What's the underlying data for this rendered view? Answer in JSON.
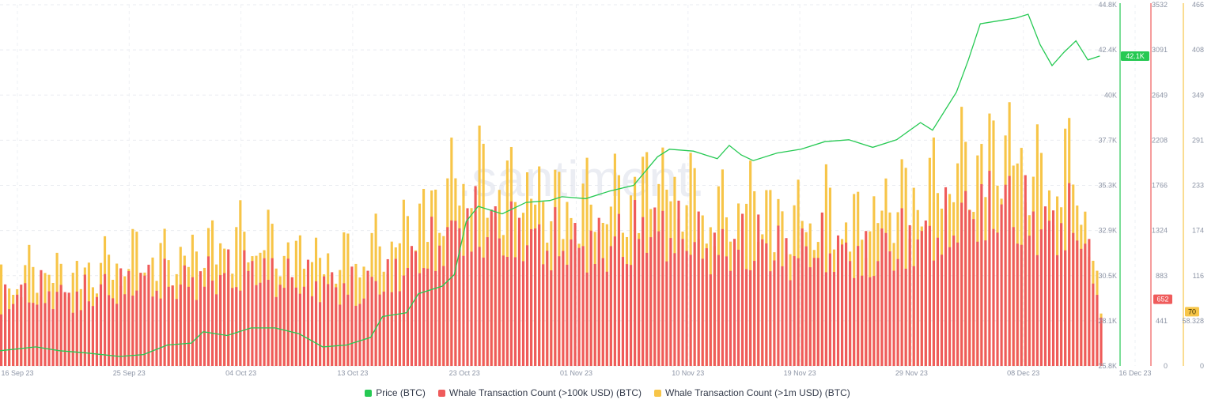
{
  "chart_data": {
    "type": "bar",
    "watermark": ".santiment.",
    "x_ticks": [
      "16 Sep 23",
      "25 Sep 23",
      "04 Oct 23",
      "13 Oct 23",
      "23 Oct 23",
      "01 Nov 23",
      "10 Nov 23",
      "19 Nov 23",
      "29 Nov 23",
      "08 Dec 23",
      "16 Dec 23"
    ],
    "axes": {
      "price": {
        "ticks": [
          "44.8K",
          "42.4K",
          "40K",
          "37.7K",
          "35.3K",
          "32.9K",
          "30.5K",
          "28.1K",
          "25.8K"
        ],
        "ylim": [
          25800,
          44800
        ],
        "current_label": "42.1K",
        "current": 42100,
        "color": "#26c953"
      },
      "whale_100k": {
        "ticks": [
          "3532",
          "3091",
          "2649",
          "2208",
          "1766",
          "1324",
          "883",
          "441",
          "0"
        ],
        "ylim": [
          0,
          3532
        ],
        "current_label": "652",
        "current": 652,
        "color": "#ef5b5b"
      },
      "whale_1m": {
        "ticks": [
          "466",
          "408",
          "349",
          "291",
          "233",
          "174",
          "116",
          "58.328",
          "0"
        ],
        "ylim": [
          0,
          466
        ],
        "current_label": "70",
        "current": 70,
        "color": "#f7c548"
      }
    },
    "series": [
      {
        "name": "Price (BTC)",
        "type": "line",
        "axis": "price",
        "color": "#26c953",
        "x": [
          "2023-09-15",
          "2023-09-18",
          "2023-09-20",
          "2023-09-22",
          "2023-09-25",
          "2023-09-27",
          "2023-09-29",
          "2023-10-01",
          "2023-10-02",
          "2023-10-04",
          "2023-10-06",
          "2023-10-08",
          "2023-10-10",
          "2023-10-12",
          "2023-10-14",
          "2023-10-16",
          "2023-10-17",
          "2023-10-19",
          "2023-10-20",
          "2023-10-22",
          "2023-10-23",
          "2023-10-24",
          "2023-10-25",
          "2023-10-27",
          "2023-10-29",
          "2023-10-31",
          "2023-11-01",
          "2023-11-03",
          "2023-11-05",
          "2023-11-07",
          "2023-11-09",
          "2023-11-10",
          "2023-11-12",
          "2023-11-14",
          "2023-11-15",
          "2023-11-16",
          "2023-11-17",
          "2023-11-19",
          "2023-11-21",
          "2023-11-23",
          "2023-11-25",
          "2023-11-27",
          "2023-11-29",
          "2023-12-01",
          "2023-12-02",
          "2023-12-04",
          "2023-12-05",
          "2023-12-06",
          "2023-12-08",
          "2023-12-09",
          "2023-12-10",
          "2023-12-11",
          "2023-12-12",
          "2023-12-13",
          "2023-12-14",
          "2023-12-15",
          "2023-12-16"
        ],
        "values": [
          26600,
          26800,
          26600,
          26500,
          26300,
          26400,
          26900,
          27000,
          27600,
          27400,
          27800,
          27800,
          27500,
          26800,
          26900,
          27300,
          28400,
          28600,
          29600,
          30000,
          30600,
          33400,
          34200,
          33800,
          34400,
          34500,
          34700,
          34600,
          35000,
          35300,
          36800,
          37200,
          37100,
          36700,
          37400,
          36900,
          36600,
          37000,
          37200,
          37600,
          37700,
          37300,
          37700,
          38600,
          38200,
          40200,
          41900,
          43800,
          44000,
          44100,
          44300,
          42700,
          41600,
          42300,
          42900,
          41900,
          42100
        ]
      },
      {
        "name": "Whale Transaction Count (>100k USD) (BTC)",
        "type": "bar",
        "axis": "whale_100k",
        "color": "#ef5b5b",
        "x": [
          "2023-09-15",
          "2023-09-18",
          "2023-09-21",
          "2023-09-24",
          "2023-09-27",
          "2023-09-30",
          "2023-10-03",
          "2023-10-06",
          "2023-10-09",
          "2023-10-12",
          "2023-10-15",
          "2023-10-18",
          "2023-10-21",
          "2023-10-24",
          "2023-10-27",
          "2023-10-30",
          "2023-11-02",
          "2023-11-05",
          "2023-11-08",
          "2023-11-11",
          "2023-11-14",
          "2023-11-17",
          "2023-11-20",
          "2023-11-23",
          "2023-11-26",
          "2023-11-29",
          "2023-12-02",
          "2023-12-05",
          "2023-12-08",
          "2023-12-11",
          "2023-12-14",
          "2023-12-16"
        ],
        "values": [
          700,
          780,
          720,
          800,
          900,
          850,
          950,
          1000,
          900,
          850,
          800,
          950,
          1200,
          1500,
          1400,
          1300,
          1250,
          1250,
          1450,
          1350,
          1200,
          1300,
          1150,
          1250,
          1100,
          1300,
          1350,
          1600,
          1700,
          1450,
          1500,
          652
        ]
      },
      {
        "name": "Whale Transaction Count (>1m USD) (BTC)",
        "type": "bar",
        "axis": "whale_1m",
        "color": "#f7c548",
        "x": [
          "2023-09-15",
          "2023-09-18",
          "2023-09-21",
          "2023-09-24",
          "2023-09-27",
          "2023-09-30",
          "2023-10-03",
          "2023-10-06",
          "2023-10-09",
          "2023-10-12",
          "2023-10-15",
          "2023-10-18",
          "2023-10-21",
          "2023-10-24",
          "2023-10-27",
          "2023-10-30",
          "2023-11-02",
          "2023-11-05",
          "2023-11-08",
          "2023-11-11",
          "2023-11-14",
          "2023-11-17",
          "2023-11-20",
          "2023-11-23",
          "2023-11-26",
          "2023-11-29",
          "2023-12-02",
          "2023-12-05",
          "2023-12-08",
          "2023-12-11",
          "2023-12-14",
          "2023-12-16"
        ],
        "values": [
          110,
          130,
          120,
          140,
          150,
          145,
          165,
          175,
          155,
          140,
          150,
          170,
          220,
          260,
          240,
          230,
          215,
          220,
          250,
          235,
          205,
          225,
          195,
          210,
          190,
          230,
          240,
          280,
          300,
          250,
          270,
          70
        ]
      }
    ],
    "legend_position": "bottom-center",
    "grid": true
  }
}
